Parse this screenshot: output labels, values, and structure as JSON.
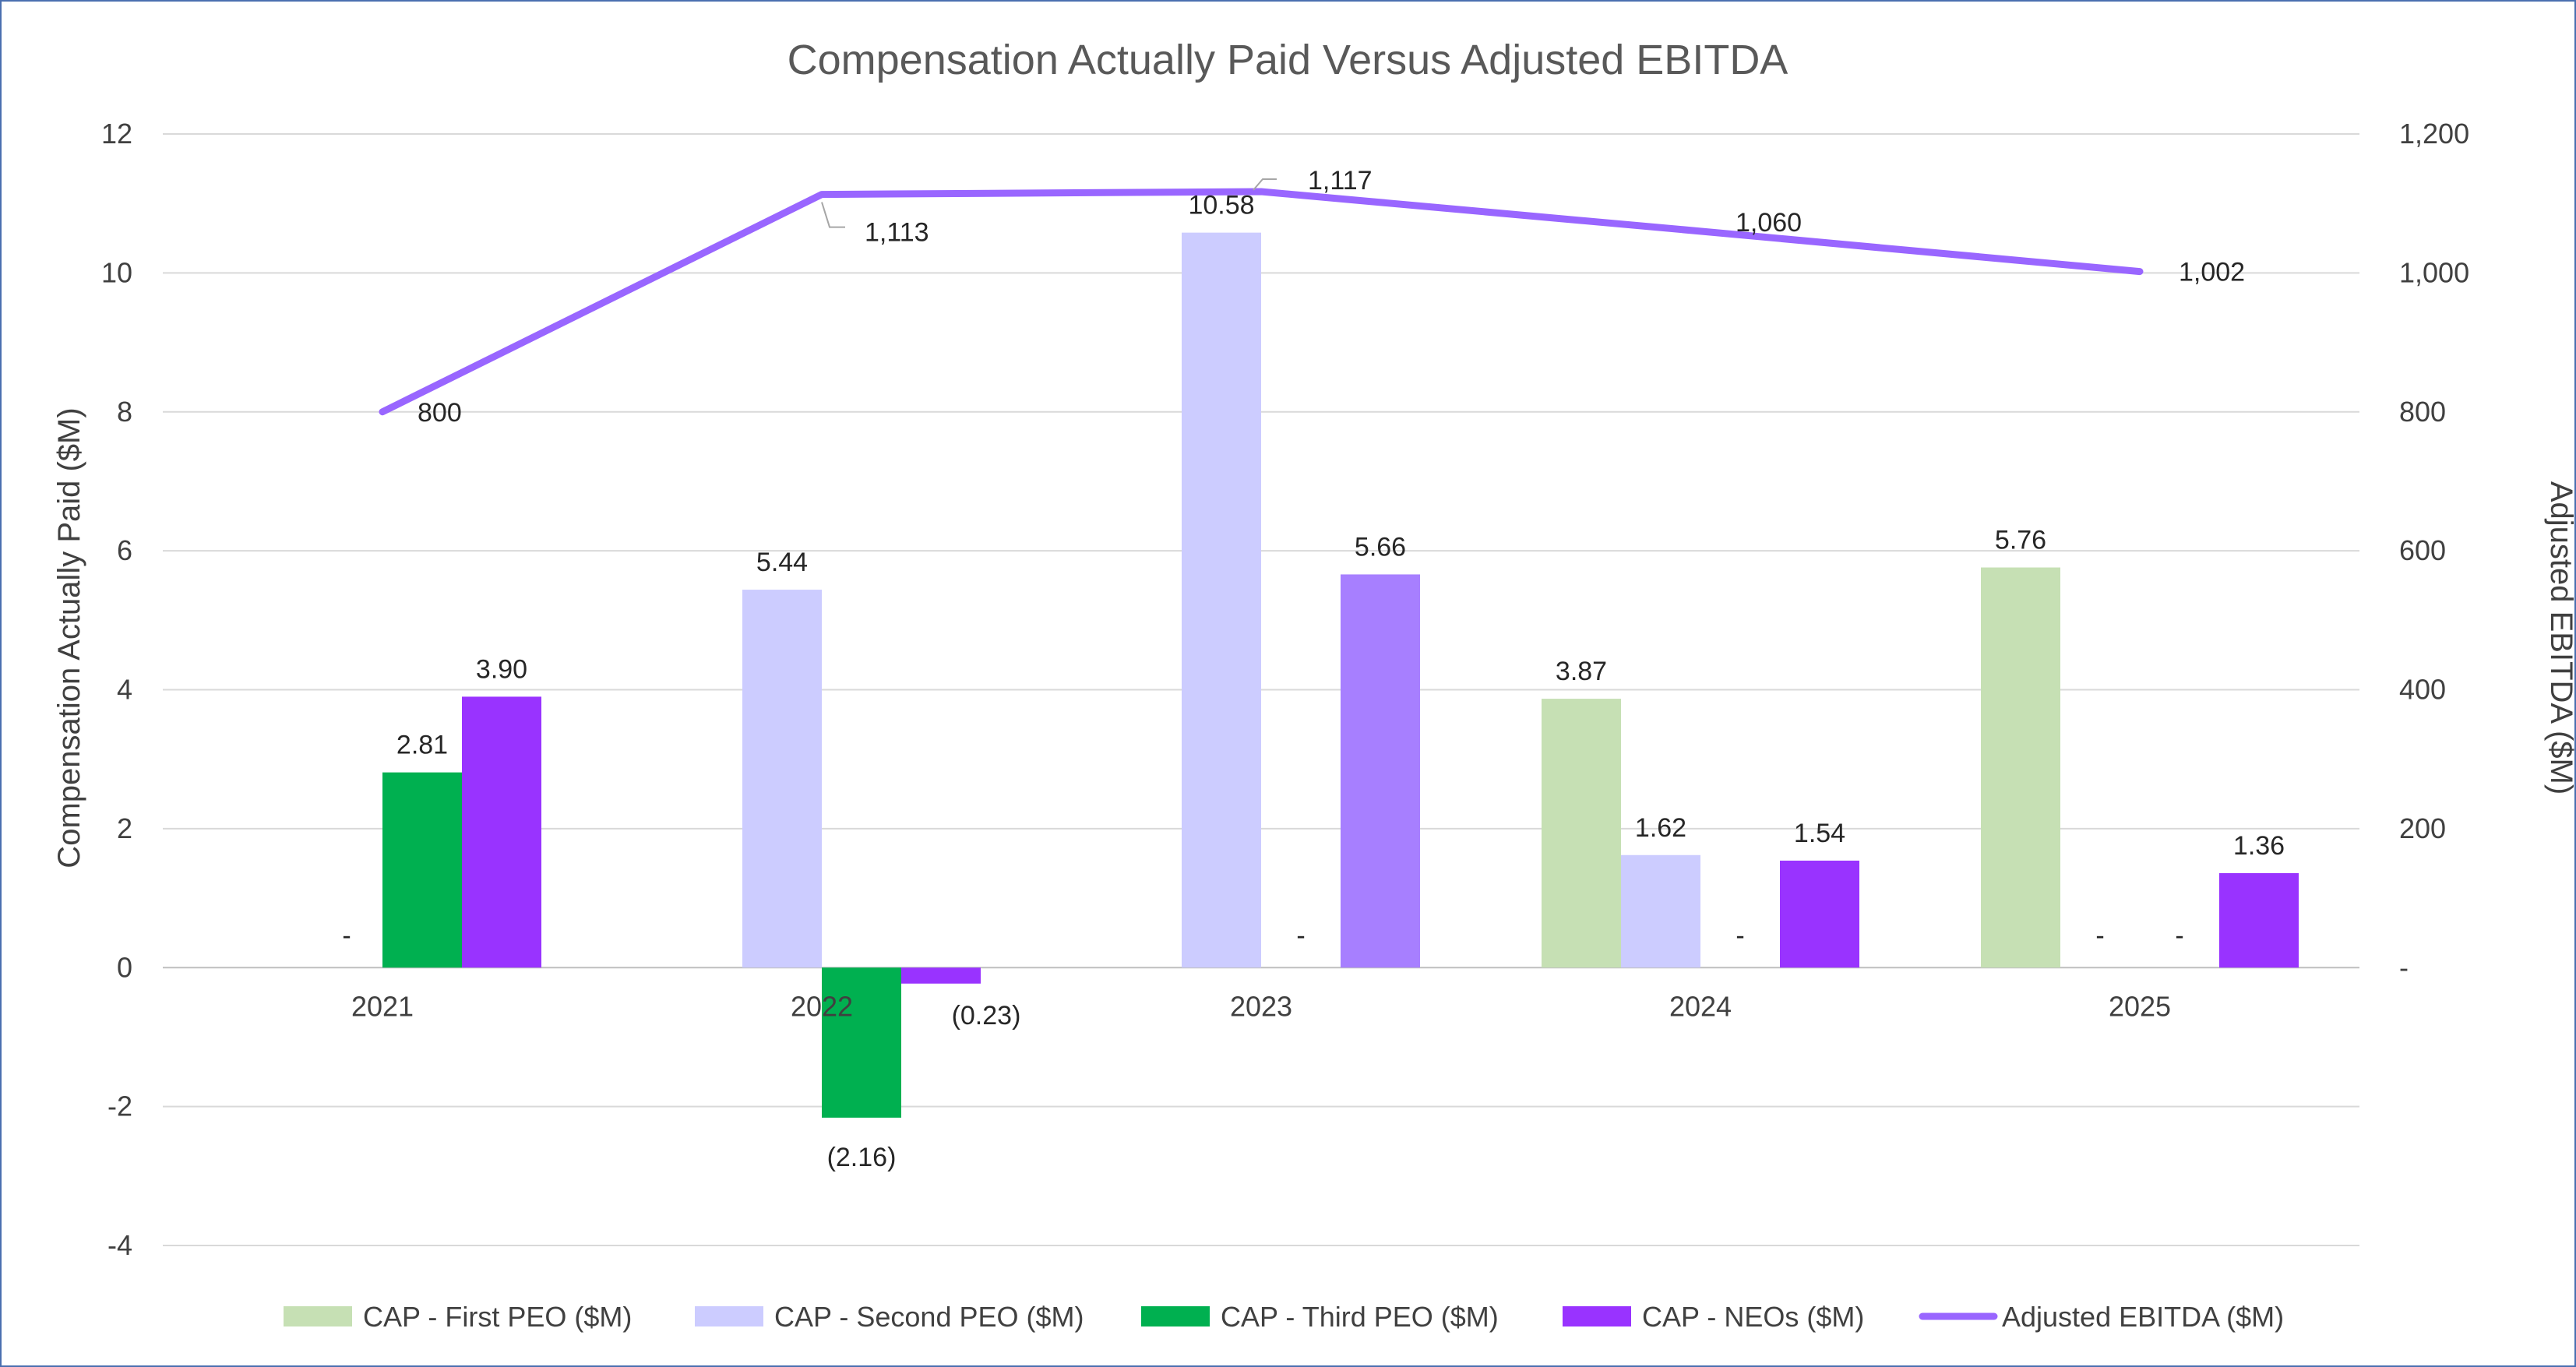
{
  "chart_data": {
    "type": "bar",
    "title": "Compensation Actually Paid Versus Adjusted EBITDA",
    "categories": [
      "2021",
      "2022",
      "2023",
      "2024",
      "2025"
    ],
    "ylabel": "Compensation Actually Paid ($M)",
    "ylim": [
      -4,
      12
    ],
    "yticks": [
      -4,
      -2,
      0,
      2,
      4,
      6,
      8,
      10,
      12
    ],
    "ytick_labels": [
      "-4",
      "-2",
      "0",
      "2",
      "4",
      "6",
      "8",
      "10",
      "12"
    ],
    "y2label": "Adjusted EBITDA ($M)",
    "y2lim": [
      0,
      1200
    ],
    "y2ticks": [
      0,
      200,
      400,
      600,
      800,
      1000,
      1200
    ],
    "y2tick_labels": [
      "-",
      "200",
      "400",
      "600",
      "800",
      "1,000",
      "1,200"
    ],
    "grid": true,
    "legend_position": "bottom",
    "series": [
      {
        "name": "CAP - First PEO ($M)",
        "type": "bar",
        "color": "#c6e0b4",
        "values": [
          null,
          null,
          null,
          3.87,
          5.76
        ],
        "labels": [
          "",
          "",
          "",
          "3.87",
          "5.76"
        ]
      },
      {
        "name": "CAP - Second PEO ($M)",
        "type": "bar",
        "color": "#ccccff",
        "values": [
          null,
          5.44,
          10.58,
          1.62,
          null
        ],
        "labels": [
          "",
          "5.44",
          "10.58",
          "1.62",
          "-"
        ]
      },
      {
        "name": "CAP - Third PEO ($M)",
        "type": "bar",
        "color": "#00b050",
        "values": [
          2.81,
          -2.16,
          null,
          null,
          null
        ],
        "labels": [
          "2.81",
          "(2.16)",
          "-",
          "-",
          "-"
        ]
      },
      {
        "name": "CAP - NEOs ($M)",
        "type": "bar",
        "color": "#9933ff",
        "colors": [
          "#9933ff",
          "#9933ff",
          "#a77fff",
          "#9933ff",
          "#9933ff"
        ],
        "values": [
          3.9,
          -0.23,
          5.66,
          1.54,
          1.36
        ],
        "labels": [
          "3.90",
          "(0.23)",
          "5.66",
          "1.54",
          "1.36"
        ]
      },
      {
        "name": "Adjusted EBITDA ($M)",
        "type": "line",
        "axis": "right",
        "color": "#9966ff",
        "values": [
          800,
          1113,
          1117,
          1060,
          1002
        ],
        "labels": [
          "800",
          "1,113",
          "1,117",
          "1,060",
          "1,002"
        ]
      }
    ],
    "left_dash_label": "-"
  }
}
